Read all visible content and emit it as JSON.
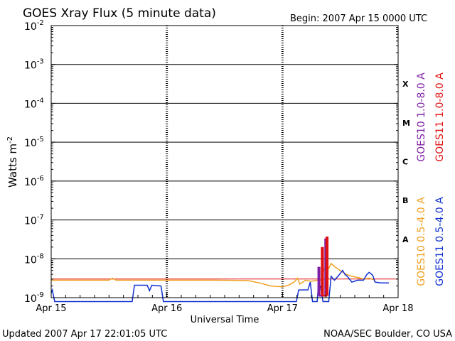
{
  "header": {
    "title": "GOES Xray Flux (5 minute data)",
    "begin": "Begin:  2007 Apr 15 0000 UTC"
  },
  "footer": {
    "updated": "Updated 2007 Apr 17 22:01:05 UTC",
    "credit": "NOAA/SEC Boulder, CO USA"
  },
  "colors": {
    "goes10_long": "#7f1fa6",
    "goes11_long": "#e01010",
    "goes10_short": "#f0a020",
    "goes11_short": "#1030d0",
    "threshold": "#e01010"
  },
  "chart_data": {
    "type": "line",
    "title": "GOES Xray Flux (5 minute data)",
    "xlabel": "Universal Time",
    "ylabel_base": "Watts m",
    "ylabel_exp": "-2",
    "yscale": "log",
    "ylim_exp": [
      -9,
      -2
    ],
    "xlim_days": [
      0,
      3
    ],
    "x_ticks": [
      {
        "day": 0,
        "label": "Apr 15"
      },
      {
        "day": 1,
        "label": "Apr 16"
      },
      {
        "day": 2,
        "label": "Apr 17"
      },
      {
        "day": 3,
        "label": "Apr 18"
      }
    ],
    "y_ticks": [
      {
        "exp": -9,
        "base": "10",
        "sup": "-9"
      },
      {
        "exp": -8,
        "base": "10",
        "sup": "-8"
      },
      {
        "exp": -7,
        "base": "10",
        "sup": "-7"
      },
      {
        "exp": -6,
        "base": "10",
        "sup": "-6"
      },
      {
        "exp": -5,
        "base": "10",
        "sup": "-5"
      },
      {
        "exp": -4,
        "base": "10",
        "sup": "-4"
      },
      {
        "exp": -3,
        "base": "10",
        "sup": "-3"
      },
      {
        "exp": -2,
        "base": "10",
        "sup": "-2"
      }
    ],
    "flare_classes": [
      {
        "label": "A",
        "exp": -7.5
      },
      {
        "label": "B",
        "exp": -6.5
      },
      {
        "label": "C",
        "exp": -5.5
      },
      {
        "label": "M",
        "exp": -4.5
      },
      {
        "label": "X",
        "exp": -3.5
      }
    ],
    "threshold_exp": -8.52,
    "series": [
      {
        "key": "goes10_short",
        "name": "GOES10 0.5-4.0 A",
        "color": "#f0a020",
        "points": [
          [
            0.0,
            -8.55
          ],
          [
            0.5,
            -8.55
          ],
          [
            0.53,
            -8.5
          ],
          [
            0.56,
            -8.55
          ],
          [
            1.0,
            -8.55
          ],
          [
            1.4,
            -8.55
          ],
          [
            1.7,
            -8.56
          ],
          [
            1.8,
            -8.62
          ],
          [
            1.9,
            -8.7
          ],
          [
            2.0,
            -8.72
          ],
          [
            2.05,
            -8.68
          ],
          [
            2.1,
            -8.6
          ],
          [
            2.13,
            -8.5
          ],
          [
            2.15,
            -8.65
          ],
          [
            2.2,
            -8.55
          ],
          [
            2.25,
            -8.58
          ],
          [
            2.3,
            -8.55
          ],
          [
            2.34,
            -8.55
          ],
          [
            2.36,
            -8.25
          ],
          [
            2.4,
            -8.25
          ],
          [
            2.42,
            -8.12
          ],
          [
            2.45,
            -8.2
          ],
          [
            2.5,
            -8.3
          ],
          [
            2.55,
            -8.4
          ],
          [
            2.6,
            -8.45
          ],
          [
            2.65,
            -8.48
          ],
          [
            2.7,
            -8.52
          ],
          [
            2.75,
            -8.5
          ],
          [
            2.8,
            -8.55
          ]
        ]
      },
      {
        "key": "goes11_short",
        "name": "GOES11 0.5-4.0 A",
        "color": "#1030d0",
        "points": [
          [
            0.0,
            -8.88
          ],
          [
            0.01,
            -8.8
          ],
          [
            0.03,
            -9.1
          ],
          [
            0.07,
            -9.1
          ],
          [
            0.7,
            -9.1
          ],
          [
            0.72,
            -8.68
          ],
          [
            0.83,
            -8.68
          ],
          [
            0.85,
            -8.82
          ],
          [
            0.87,
            -8.68
          ],
          [
            0.95,
            -8.7
          ],
          [
            0.97,
            -9.1
          ],
          [
            2.12,
            -9.1
          ],
          [
            2.14,
            -8.8
          ],
          [
            2.22,
            -8.8
          ],
          [
            2.24,
            -8.6
          ],
          [
            2.26,
            -9.1
          ],
          [
            2.3,
            -9.1
          ],
          [
            2.31,
            -8.7
          ],
          [
            2.33,
            -8.7
          ],
          [
            2.35,
            -9.1
          ],
          [
            2.4,
            -9.1
          ],
          [
            2.42,
            -8.45
          ],
          [
            2.45,
            -8.55
          ],
          [
            2.48,
            -8.45
          ],
          [
            2.52,
            -8.3
          ],
          [
            2.54,
            -8.4
          ],
          [
            2.56,
            -8.45
          ],
          [
            2.6,
            -8.6
          ],
          [
            2.65,
            -8.55
          ],
          [
            2.7,
            -8.55
          ],
          [
            2.73,
            -8.4
          ],
          [
            2.75,
            -8.35
          ],
          [
            2.78,
            -8.42
          ],
          [
            2.8,
            -8.6
          ],
          [
            2.85,
            -8.62
          ],
          [
            2.92,
            -8.62
          ]
        ]
      },
      {
        "key": "goes10_long",
        "name": "GOES10 1.0-8.0 A",
        "color": "#7f1fa6",
        "points": [
          [
            2.31,
            -8.95
          ],
          [
            2.31,
            -8.23
          ],
          [
            2.32,
            -8.23
          ],
          [
            2.32,
            -8.95
          ],
          [
            2.37,
            -8.95
          ],
          [
            2.37,
            -7.5
          ],
          [
            2.38,
            -7.5
          ],
          [
            2.38,
            -8.95
          ]
        ]
      },
      {
        "key": "goes11_long",
        "name": "GOES11 1.0-8.0 A",
        "color": "#e01010",
        "points": [
          [
            2.34,
            -8.95
          ],
          [
            2.34,
            -7.72
          ],
          [
            2.35,
            -7.72
          ],
          [
            2.35,
            -8.95
          ],
          [
            2.38,
            -8.95
          ],
          [
            2.38,
            -7.45
          ],
          [
            2.39,
            -7.45
          ],
          [
            2.39,
            -8.95
          ]
        ]
      }
    ],
    "legend": [
      {
        "key": "goes10_long",
        "label": "GOES10 1.0-8.0 A",
        "color": "#7f1fa6",
        "col": 0,
        "row": 0
      },
      {
        "key": "goes11_long",
        "label": "GOES11 1.0-8.0 A",
        "color": "#e01010",
        "col": 1,
        "row": 0
      },
      {
        "key": "goes10_short",
        "label": "GOES10 0.5-4.0 A",
        "color": "#f0a020",
        "col": 0,
        "row": 1
      },
      {
        "key": "goes11_short",
        "label": "GOES11 0.5-4.0 A",
        "color": "#1030d0",
        "col": 1,
        "row": 1
      }
    ]
  }
}
